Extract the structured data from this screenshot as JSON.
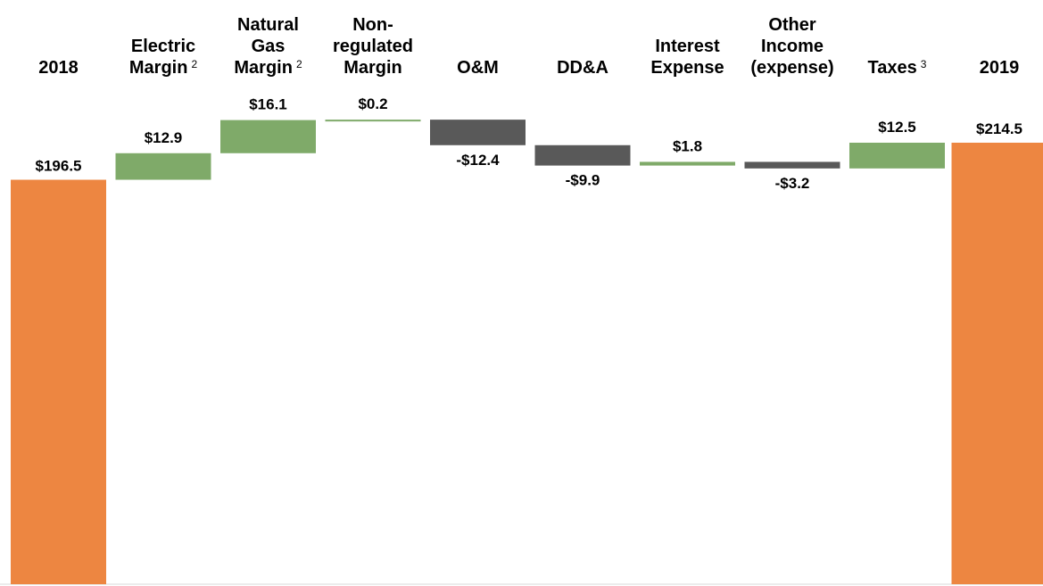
{
  "chart_data": {
    "type": "bar",
    "subtype": "waterfall",
    "categories": [
      {
        "lines": [
          "2018"
        ],
        "footnote": ""
      },
      {
        "lines": [
          "Electric",
          "Margin"
        ],
        "footnote": "2"
      },
      {
        "lines": [
          "Natural",
          "Gas",
          "Margin"
        ],
        "footnote": "2"
      },
      {
        "lines": [
          "Non-",
          "regulated",
          "Margin"
        ],
        "footnote": ""
      },
      {
        "lines": [
          "O&M"
        ],
        "footnote": ""
      },
      {
        "lines": [
          "DD&A"
        ],
        "footnote": ""
      },
      {
        "lines": [
          "Interest",
          "Expense"
        ],
        "footnote": ""
      },
      {
        "lines": [
          "Other",
          "Income",
          "(expense)"
        ],
        "footnote": ""
      },
      {
        "lines": [
          "Taxes"
        ],
        "footnote": "3"
      },
      {
        "lines": [
          "2019"
        ],
        "footnote": ""
      }
    ],
    "values": [
      196.5,
      12.9,
      16.1,
      0.2,
      -12.4,
      -9.9,
      1.8,
      -3.2,
      12.5,
      214.5
    ],
    "kinds": [
      "total",
      "delta",
      "delta",
      "delta",
      "delta",
      "delta",
      "delta",
      "delta",
      "delta",
      "total"
    ],
    "value_labels": [
      "$196.5",
      "$12.9",
      "$16.1",
      "$0.2",
      "-$12.4",
      "-$9.9",
      "$1.8",
      "-$3.2",
      "$12.5",
      "$214.5"
    ],
    "ylim": [
      0,
      214.5
    ],
    "grid": false,
    "legend": "none",
    "colors": {
      "total": "#ED8641",
      "increase": "#7FAA69",
      "decrease": "#595959",
      "baseline": "#D9D9D9"
    },
    "title": "",
    "xlabel": "",
    "ylabel": ""
  }
}
